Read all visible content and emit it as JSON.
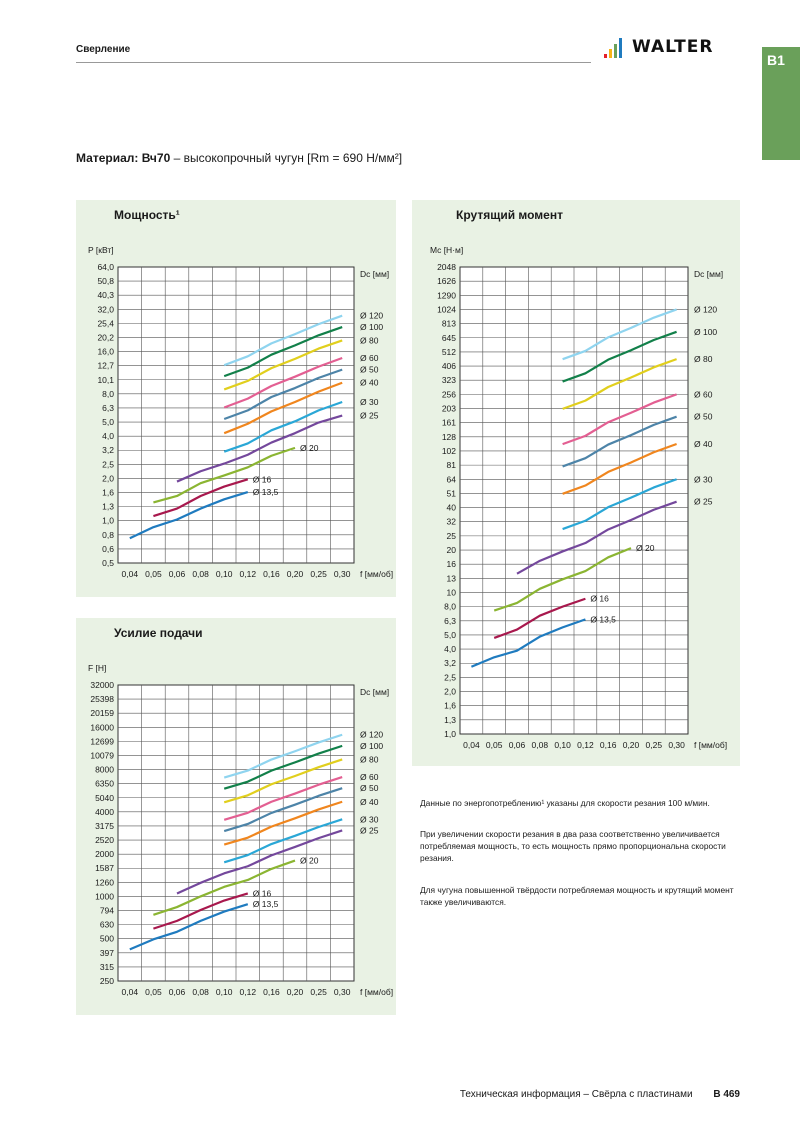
{
  "header": {
    "title": "Сверление",
    "brand": "WALTER",
    "section_tab": "B1"
  },
  "material": {
    "prefix": "Материал:",
    "grade": "Вч70",
    "description": " – высокопрочный чугун [Rm = 690 Н/мм²]"
  },
  "colors": {
    "panel_bg": "#e9f2e4",
    "section_tab": "#6aa05a",
    "grid": "#333333",
    "d13_5": "#1f7bbf",
    "d16": "#a8184d",
    "d20": "#8bb532",
    "d25": "#74489c",
    "d30": "#2aa7d6",
    "d40": "#f0861e",
    "d50": "#4d84a8",
    "d60": "#e35f92",
    "d80": "#e1cf1d",
    "d100": "#12804a",
    "d120": "#8fd4ef"
  },
  "legend_unit": "Dc [мм]",
  "x_unit": "f [мм/об]",
  "notes": [
    "Данные по энергопотреблению¹ указаны для скорости резания 100 м/мин.",
    "При увеличении скорости резания в два раза соответственно увеличивается потребляемая мощность, то есть мощность прямо пропорциональна скорости резания.",
    "Для чугуна повышенной твёрдости потребляемая мощность и крутящий момент также увеличиваются."
  ],
  "footer": {
    "text": "Техническая информация – Свёрла с пластинами",
    "page": "B 469"
  },
  "chart_data": [
    {
      "type": "line",
      "title": "Мощность¹",
      "ylabel": "P [кВт]",
      "xlabel": "f [мм/об]",
      "scale": "log",
      "categories": [
        "0,04",
        "0,05",
        "0,06",
        "0,08",
        "0,10",
        "0,12",
        "0,16",
        "0,20",
        "0,25",
        "0,30"
      ],
      "yticks": [
        "0,5",
        "0,6",
        "0,8",
        "1,0",
        "1,3",
        "1,6",
        "2,0",
        "2,5",
        "3,2",
        "4,0",
        "5,0",
        "6,3",
        "8,0",
        "10,1",
        "12,7",
        "16,0",
        "20,2",
        "25,4",
        "32,0",
        "40,3",
        "50,8",
        "64,0"
      ],
      "series": [
        {
          "name": "Ø 13,5",
          "key": "d13_5",
          "values": [
            0.75,
            0.9,
            1.02,
            1.22,
            1.42,
            1.6,
            null,
            null,
            null,
            null
          ]
        },
        {
          "name": "Ø 16",
          "key": "d16",
          "values": [
            null,
            1.08,
            1.22,
            1.5,
            1.75,
            1.97,
            null,
            null,
            null,
            null
          ]
        },
        {
          "name": "Ø 20",
          "key": "d20",
          "values": [
            null,
            1.35,
            1.5,
            1.85,
            2.1,
            2.4,
            2.9,
            3.3,
            null,
            null
          ]
        },
        {
          "name": "Ø 25",
          "key": "d25",
          "values": [
            null,
            null,
            1.9,
            2.25,
            2.55,
            2.95,
            3.6,
            4.2,
            5.0,
            5.6
          ]
        },
        {
          "name": "Ø 30",
          "key": "d30",
          "values": [
            null,
            null,
            null,
            null,
            3.1,
            3.55,
            4.4,
            5.1,
            6.1,
            7.0
          ]
        },
        {
          "name": "Ø 40",
          "key": "d40",
          "values": [
            null,
            null,
            null,
            null,
            4.2,
            4.9,
            6.0,
            7.0,
            8.3,
            9.6
          ]
        },
        {
          "name": "Ø 50",
          "key": "d50",
          "values": [
            null,
            null,
            null,
            null,
            5.3,
            6.1,
            7.6,
            8.8,
            10.4,
            11.9
          ]
        },
        {
          "name": "Ø 60",
          "key": "d60",
          "values": [
            null,
            null,
            null,
            null,
            6.4,
            7.4,
            9.1,
            10.6,
            12.5,
            14.4
          ]
        },
        {
          "name": "Ø 80",
          "key": "d80",
          "values": [
            null,
            null,
            null,
            null,
            8.6,
            9.9,
            12.2,
            14.2,
            16.8,
            19.2
          ]
        },
        {
          "name": "Ø 100",
          "key": "d100",
          "values": [
            null,
            null,
            null,
            null,
            10.7,
            12.3,
            15.2,
            17.7,
            20.9,
            23.9
          ]
        },
        {
          "name": "Ø 120",
          "key": "d120",
          "values": [
            null,
            null,
            null,
            null,
            12.8,
            14.8,
            18.3,
            21.3,
            25.1,
            28.8
          ]
        }
      ]
    },
    {
      "type": "line",
      "title": "Крутящий момент",
      "ylabel": "Mc [Н·м]",
      "xlabel": "f [мм/об]",
      "scale": "log",
      "categories": [
        "0,04",
        "0,05",
        "0,06",
        "0,08",
        "0,10",
        "0,12",
        "0,16",
        "0,20",
        "0,25",
        "0,30"
      ],
      "yticks": [
        "1,0",
        "1,3",
        "1,6",
        "2,0",
        "2,5",
        "3,2",
        "4,0",
        "5,0",
        "6,3",
        "8,0",
        "10",
        "13",
        "16",
        "20",
        "25",
        "32",
        "40",
        "51",
        "64",
        "81",
        "102",
        "128",
        "161",
        "203",
        "256",
        "323",
        "406",
        "512",
        "645",
        "813",
        "1024",
        "1290",
        "1626",
        "2048"
      ],
      "series": [
        {
          "name": "Ø 13,5",
          "key": "d13_5",
          "values": [
            3.0,
            3.5,
            3.9,
            4.9,
            5.7,
            6.5,
            null,
            null,
            null,
            null
          ]
        },
        {
          "name": "Ø 16",
          "key": "d16",
          "values": [
            null,
            4.8,
            5.5,
            6.9,
            8.0,
            9.1,
            null,
            null,
            null,
            null
          ]
        },
        {
          "name": "Ø 20",
          "key": "d20",
          "values": [
            null,
            7.5,
            8.5,
            10.7,
            12.5,
            14.3,
            17.9,
            20.8,
            null,
            null
          ]
        },
        {
          "name": "Ø 25",
          "key": "d25",
          "values": [
            null,
            null,
            13.7,
            16.9,
            19.7,
            22.6,
            28.2,
            32.9,
            38.9,
            44.4
          ]
        },
        {
          "name": "Ø 30",
          "key": "d30",
          "values": [
            null,
            null,
            null,
            null,
            28.4,
            32.5,
            40.6,
            47.4,
            56.0,
            64.0
          ]
        },
        {
          "name": "Ø 40",
          "key": "d40",
          "values": [
            null,
            null,
            null,
            null,
            50.5,
            57.8,
            72.2,
            84.2,
            99.5,
            113.8
          ]
        },
        {
          "name": "Ø 50",
          "key": "d50",
          "values": [
            null,
            null,
            null,
            null,
            78.9,
            90.3,
            112.8,
            131.6,
            155.5,
            177.8
          ]
        },
        {
          "name": "Ø 60",
          "key": "d60",
          "values": [
            null,
            null,
            null,
            null,
            113.6,
            130.0,
            162.4,
            189.5,
            223.9,
            256.0
          ]
        },
        {
          "name": "Ø 80",
          "key": "d80",
          "values": [
            null,
            null,
            null,
            null,
            202.0,
            231.1,
            288.7,
            336.9,
            398.0,
            455.1
          ]
        },
        {
          "name": "Ø 100",
          "key": "d100",
          "values": [
            null,
            null,
            null,
            null,
            315.6,
            361.1,
            451.1,
            526.4,
            621.9,
            711.1
          ]
        },
        {
          "name": "Ø 120",
          "key": "d120",
          "values": [
            null,
            null,
            null,
            null,
            454.5,
            520.0,
            649.6,
            758.0,
            895.6,
            1024.0
          ]
        }
      ]
    },
    {
      "type": "line",
      "title": "Усилие подачи",
      "ylabel": "F [Н]",
      "xlabel": "f [мм/об]",
      "scale": "log",
      "categories": [
        "0,04",
        "0,05",
        "0,06",
        "0,08",
        "0,10",
        "0,12",
        "0,16",
        "0,20",
        "0,25",
        "0,30"
      ],
      "yticks": [
        "250",
        "315",
        "397",
        "500",
        "630",
        "794",
        "1000",
        "1260",
        "1587",
        "2000",
        "2520",
        "3175",
        "4000",
        "5040",
        "6350",
        "8000",
        "10079",
        "12699",
        "16000",
        "20159",
        "25398",
        "32000"
      ],
      "series": [
        {
          "name": "Ø 13,5",
          "key": "d13_5",
          "values": [
            420,
            495,
            560,
            670,
            780,
            880,
            null,
            null,
            null,
            null
          ]
        },
        {
          "name": "Ø 16",
          "key": "d16",
          "values": [
            null,
            590,
            670,
            800,
            935,
            1050,
            null,
            null,
            null,
            null
          ]
        },
        {
          "name": "Ø 20",
          "key": "d20",
          "values": [
            null,
            740,
            840,
            1000,
            1170,
            1310,
            1570,
            1800,
            null,
            null
          ]
        },
        {
          "name": "Ø 25",
          "key": "d25",
          "values": [
            null,
            null,
            1050,
            1250,
            1460,
            1640,
            1960,
            2250,
            2600,
            2950
          ]
        },
        {
          "name": "Ø 30",
          "key": "d30",
          "values": [
            null,
            null,
            null,
            null,
            1750,
            1970,
            2360,
            2700,
            3120,
            3540
          ]
        },
        {
          "name": "Ø 40",
          "key": "d40",
          "values": [
            null,
            null,
            null,
            null,
            2340,
            2620,
            3140,
            3600,
            4160,
            4720
          ]
        },
        {
          "name": "Ø 50",
          "key": "d50",
          "values": [
            null,
            null,
            null,
            null,
            2920,
            3280,
            3930,
            4500,
            5200,
            5900
          ]
        },
        {
          "name": "Ø 60",
          "key": "d60",
          "values": [
            null,
            null,
            null,
            null,
            3510,
            3940,
            4720,
            5400,
            6240,
            7080
          ]
        },
        {
          "name": "Ø 80",
          "key": "d80",
          "values": [
            null,
            null,
            null,
            null,
            4680,
            5250,
            6290,
            7200,
            8320,
            9440
          ]
        },
        {
          "name": "Ø 100",
          "key": "d100",
          "values": [
            null,
            null,
            null,
            null,
            5850,
            6560,
            7860,
            9000,
            10400,
            11800
          ]
        },
        {
          "name": "Ø 120",
          "key": "d120",
          "values": [
            null,
            null,
            null,
            null,
            7020,
            7870,
            9430,
            10800,
            12480,
            14160
          ]
        }
      ]
    }
  ]
}
